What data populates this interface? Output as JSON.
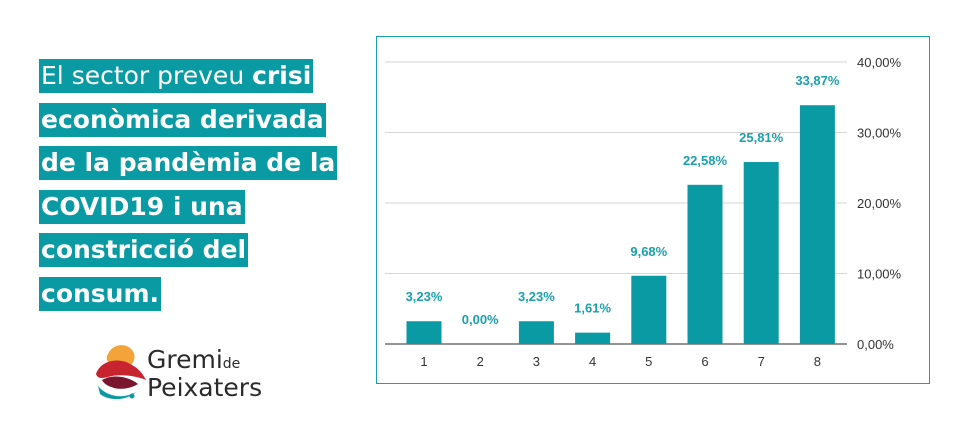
{
  "headline": {
    "part_light": "El sector preveu ",
    "part_bold": "crisi econòmica derivada de la pandèmia de la COVID19 i una constricció del consum."
  },
  "logo": {
    "line1": "Gremi",
    "line1_suffix": "de",
    "line2": "Peixaters"
  },
  "colors": {
    "accent": "#0a9aa3",
    "bar": "#0a9aa3",
    "label": "#1a9fae"
  },
  "chart_data": {
    "type": "bar",
    "categories": [
      "1",
      "2",
      "3",
      "4",
      "5",
      "6",
      "7",
      "8"
    ],
    "values": [
      3.23,
      0.0,
      3.23,
      1.61,
      9.68,
      22.58,
      25.81,
      33.87
    ],
    "data_labels": [
      "3,23%",
      "0,00%",
      "3,23%",
      "1,61%",
      "9,68%",
      "22,58%",
      "25,81%",
      "33,87%"
    ],
    "y_ticks": [
      "0,00%",
      "10,00%",
      "20,00%",
      "30,00%",
      "40,00%"
    ],
    "y_tick_values": [
      0,
      10,
      20,
      30,
      40
    ],
    "ylim": [
      0,
      40
    ],
    "y_axis_side": "right",
    "grid": true,
    "title": "",
    "xlabel": "",
    "ylabel": ""
  }
}
